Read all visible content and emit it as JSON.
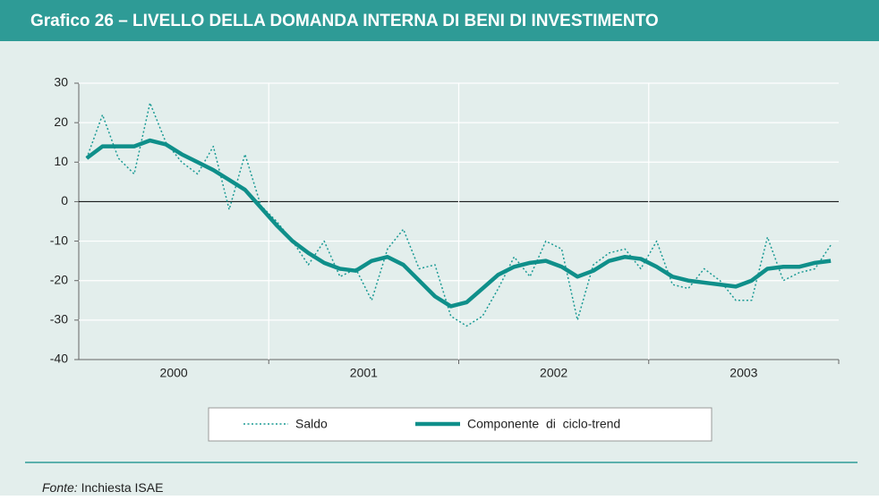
{
  "chart_data": {
    "type": "line",
    "title": "Grafico 26 – LIVELLO DELLA DOMANDA INTERNA DI BENI DI INVESTIMENTO",
    "categories": [
      null,
      null,
      null,
      null,
      null,
      null,
      "2000",
      null,
      null,
      null,
      null,
      null,
      null,
      null,
      null,
      null,
      null,
      null,
      "2001",
      null,
      null,
      null,
      null,
      null,
      null,
      null,
      null,
      null,
      null,
      null,
      "2002",
      null,
      null,
      null,
      null,
      null,
      null,
      null,
      null,
      null,
      null,
      null,
      "2003",
      null,
      null,
      null,
      null,
      null
    ],
    "series": [
      {
        "name": "Saldo",
        "color": "#1a9a94",
        "style": "dotted",
        "values": [
          11,
          22,
          11,
          7,
          25,
          15,
          10,
          7,
          14,
          -2,
          12,
          -1,
          -5,
          -10,
          -16,
          -10,
          -19,
          -17,
          -25,
          -12,
          -7,
          -17,
          -16,
          -29,
          -31.5,
          -29,
          -22,
          -14,
          -19,
          -10,
          -12,
          -30,
          -16,
          -13,
          -12,
          -17,
          -10,
          -21,
          -22,
          -17,
          -20,
          -25,
          -25,
          -9,
          -20,
          -18,
          -17,
          -11
        ]
      },
      {
        "name": "Componente  di  ciclo-trend",
        "color": "#0f8f8a",
        "style": "solid",
        "values": [
          11,
          14,
          14,
          14,
          15.5,
          14.5,
          12,
          10,
          8,
          5.5,
          3,
          -1.5,
          -6,
          -10,
          -13,
          -15.5,
          -17,
          -17.5,
          -15,
          -14,
          -16,
          -20,
          -24,
          -26.5,
          -25.5,
          -22,
          -18.5,
          -16.5,
          -15.5,
          -15,
          -16.5,
          -19,
          -17.5,
          -15,
          -14,
          -14.5,
          -16.5,
          -19,
          -20,
          -20.5,
          -21,
          -21.5,
          -20,
          -17,
          -16.5,
          -16.5,
          -15.5,
          -15
        ]
      }
    ],
    "ylim": [
      -40,
      30
    ],
    "yticks": [
      -40,
      -30,
      -20,
      -10,
      0,
      10,
      20,
      30
    ],
    "grid": true,
    "source": {
      "label": "Fonte:",
      "text": "Inchiesta ISAE"
    }
  }
}
